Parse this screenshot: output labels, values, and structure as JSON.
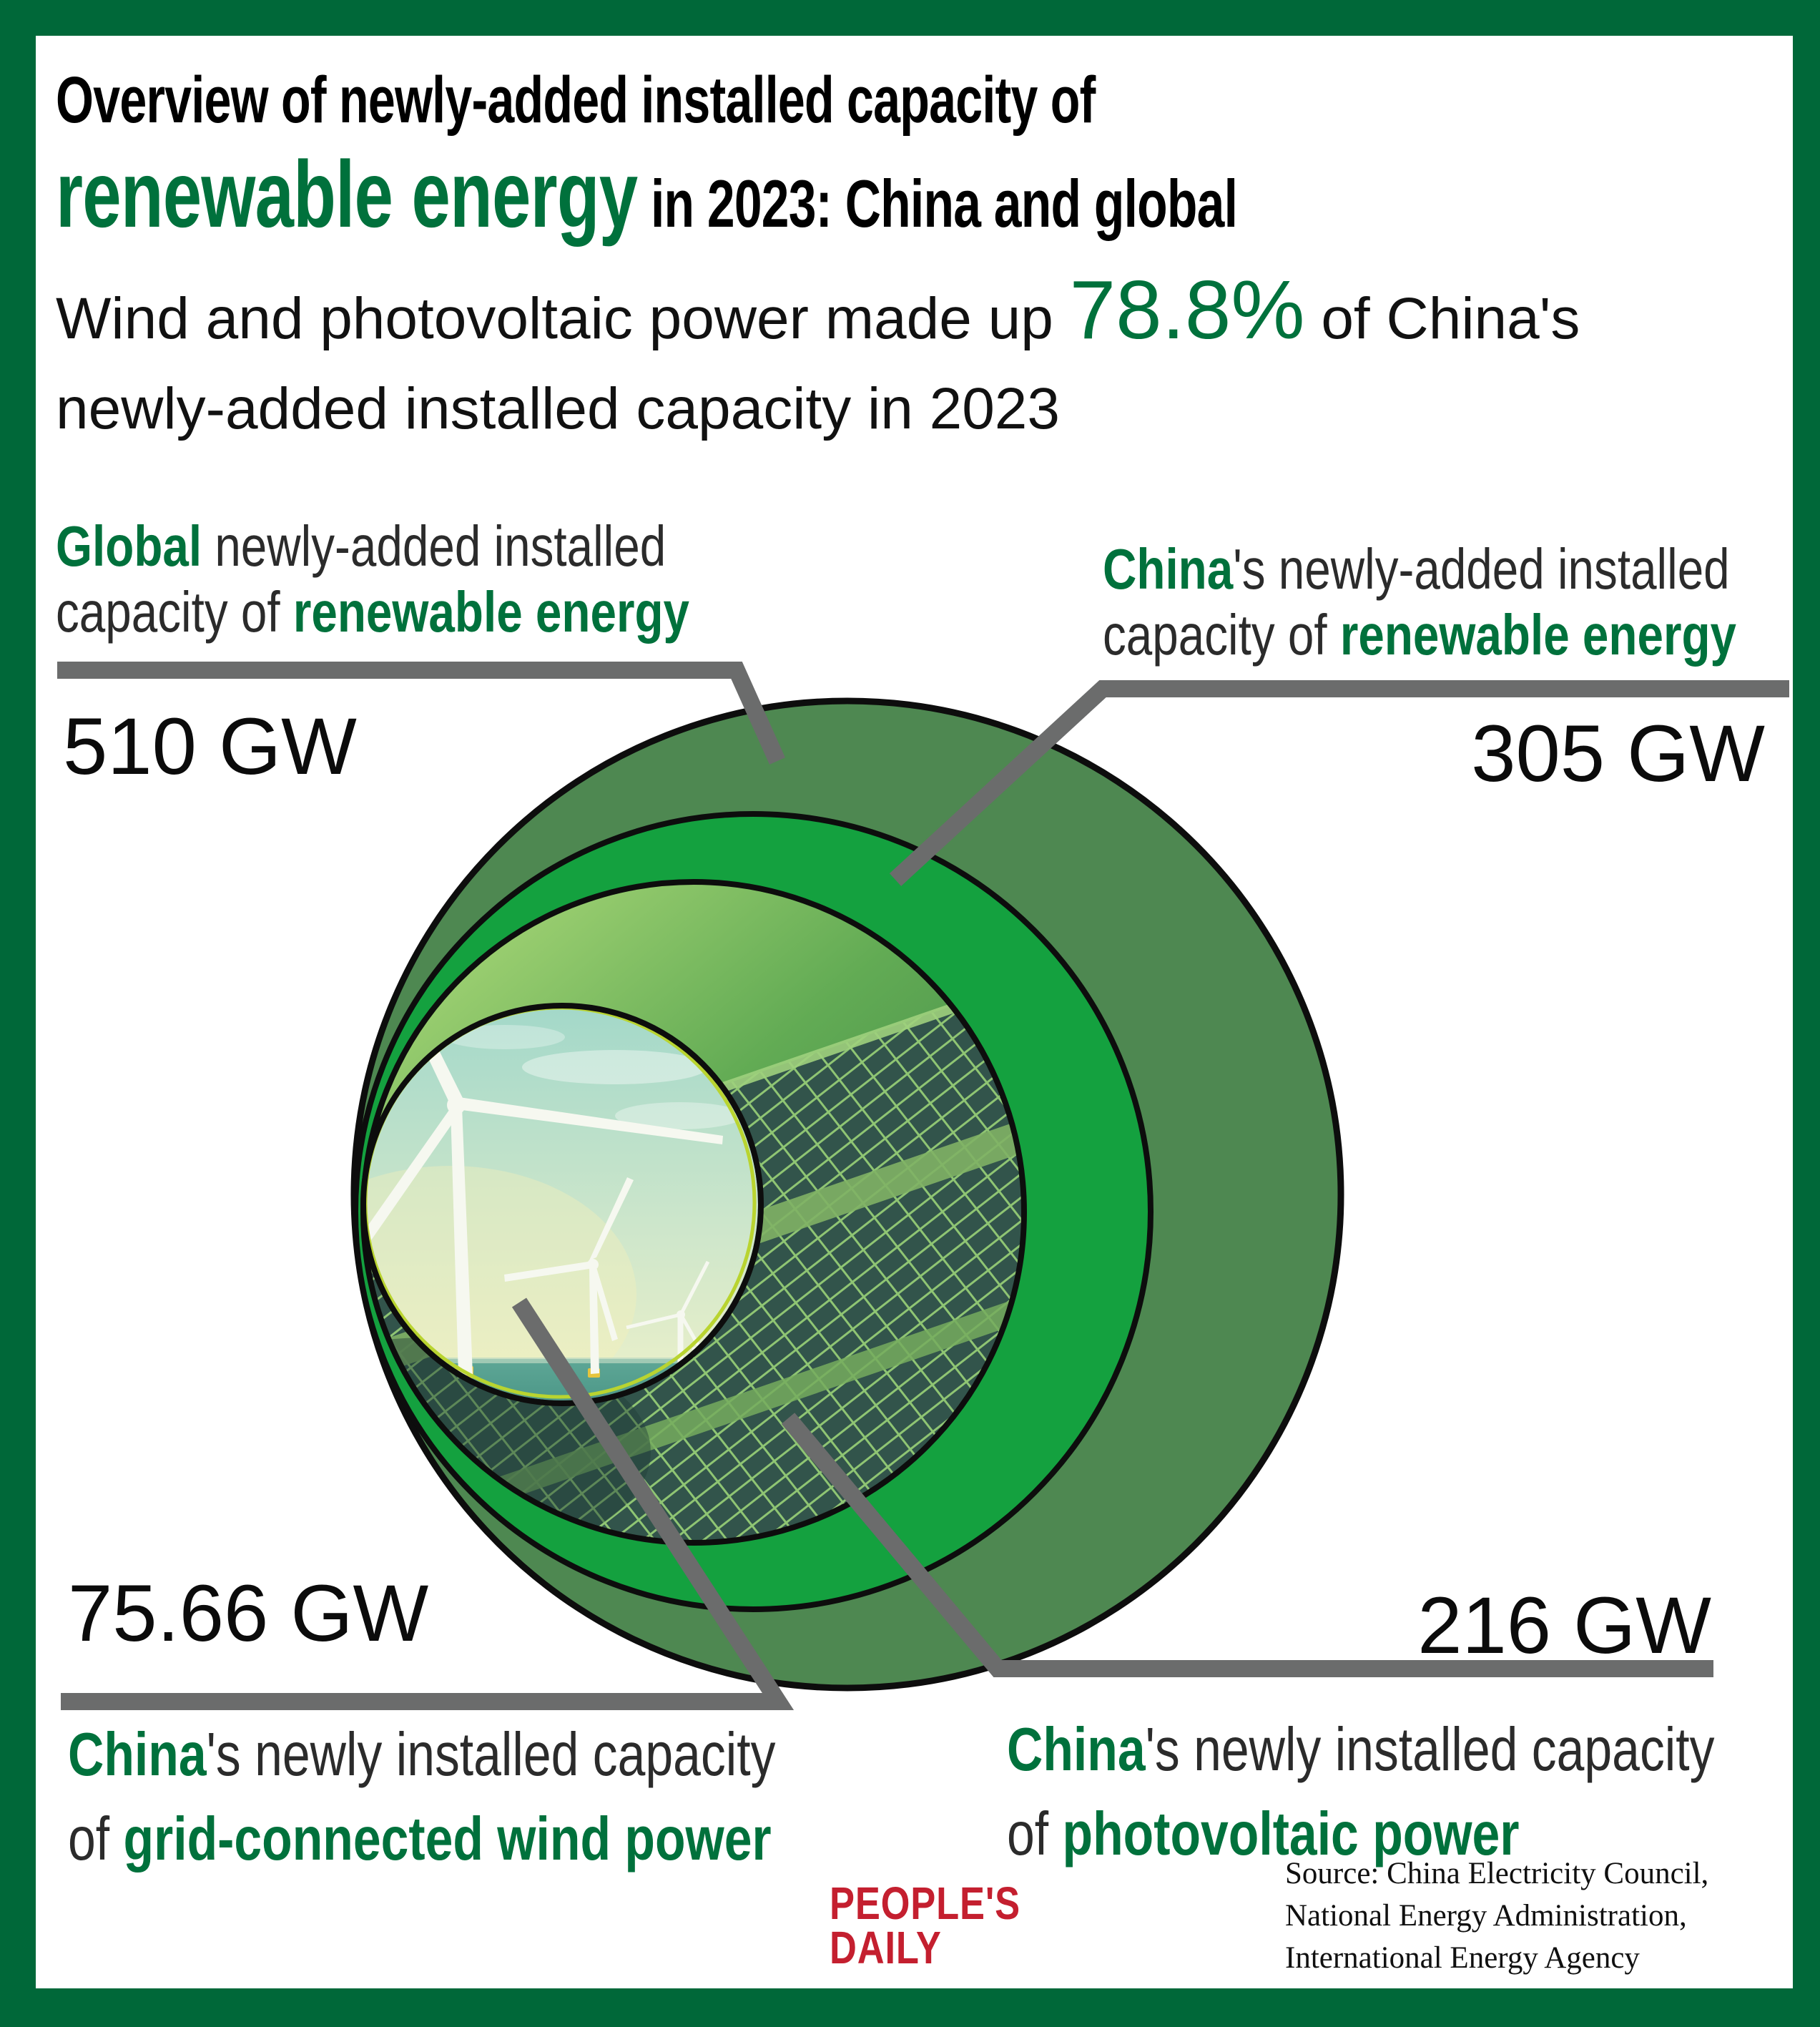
{
  "colors": {
    "frame_green": "#006839",
    "text_green": "#00713c",
    "ring_green": "#14a13f",
    "sage_green": "#4e8851",
    "leader_gray": "#6b6c6c",
    "logo_red": "#c41f2f",
    "sky_top": "#a3d8c9",
    "sky_low": "#eef1c9",
    "sea_top": "#5ea796",
    "sea_bottom": "#2c7a6e",
    "panel_dark": "#32544b",
    "panel_gap": "#8fc573",
    "grass_light": "#b7e07e",
    "grass_dark": "#2e7443",
    "rim_lime": "#b9d430",
    "turbine_white": "#f6f8f0",
    "base_yellow": "#e6c43d"
  },
  "title": {
    "line1": "Overview of newly-added installed capacity of",
    "line2": [
      {
        "t": "renewable energy",
        "c": "t-big"
      },
      {
        "t": " in 2023: China and global",
        "c": "t-rest"
      }
    ]
  },
  "subtitle": {
    "line1": [
      {
        "t": "Wind and photovoltaic power made up "
      },
      {
        "t": "78.8%",
        "c": "pct"
      },
      {
        "t": " of China's"
      }
    ],
    "line2": [
      {
        "t": "newly-added installed capacity in 2023"
      }
    ]
  },
  "annotations": {
    "global": {
      "value": "510 GW",
      "line1": [
        {
          "t": "Global",
          "c": "hl"
        },
        {
          "t": " newly-added installed"
        }
      ],
      "line2": [
        {
          "t": "capacity of "
        },
        {
          "t": "renewable energy",
          "c": "hl"
        }
      ]
    },
    "china_renewable": {
      "value": "305 GW",
      "line1": [
        {
          "t": "China",
          "c": "hl"
        },
        {
          "t": "'s newly-added installed"
        }
      ],
      "line2": [
        {
          "t": "capacity of "
        },
        {
          "t": "renewable energy",
          "c": "hl"
        }
      ]
    },
    "wind": {
      "value": "75.66 GW",
      "line1": [
        {
          "t": "China",
          "c": "hl"
        },
        {
          "t": "'s newly installed capacity"
        }
      ],
      "line2": [
        {
          "t": "of "
        },
        {
          "t": "grid-connected wind power",
          "c": "hl"
        }
      ]
    },
    "photovoltaic": {
      "value": "216 GW",
      "line1": [
        {
          "t": "China",
          "c": "hl"
        },
        {
          "t": "'s newly installed capacity"
        }
      ],
      "line2": [
        {
          "t": "of "
        },
        {
          "t": "photovoltaic power",
          "c": "hl"
        }
      ]
    }
  },
  "source": {
    "lines": [
      "Source: China Electricity Council,",
      "National Energy Administration,",
      "International Energy Agency"
    ]
  },
  "logo": {
    "line1": "PEOPLE'S",
    "line2": "DAILY"
  },
  "chart_data": {
    "type": "pie",
    "variant": "nested-proportional-circles",
    "title": "Overview of newly-added installed capacity of renewable energy in 2023: China and global",
    "subtitle": "Wind and photovoltaic power made up 78.8% of China's newly-added installed capacity in 2023",
    "unit": "GW",
    "series": [
      {
        "name": "Global newly-added installed capacity of renewable energy",
        "value": 510,
        "color": "#4e8851"
      },
      {
        "name": "China's newly-added installed capacity of renewable energy",
        "value": 305,
        "color": "#14a13f"
      },
      {
        "name": "China's newly installed capacity of photovoltaic power",
        "value": 216,
        "color": "photo-solar-panels"
      },
      {
        "name": "China's newly installed capacity of grid-connected wind power",
        "value": 75.66,
        "color": "photo-wind-turbines"
      }
    ],
    "highlight_share_pct": 78.8,
    "legend_position": "labels-with-leader-lines",
    "source": "China Electricity Council, National Energy Administration, International Energy Agency"
  }
}
